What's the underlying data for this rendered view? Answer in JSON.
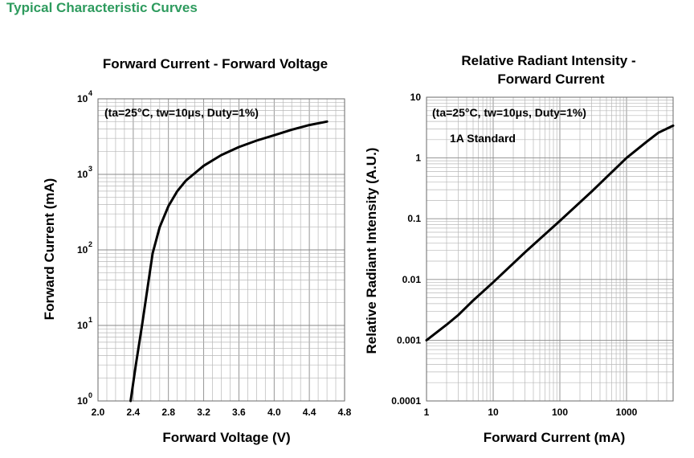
{
  "page": {
    "heading": "Typical Characteristic Curves",
    "heading_color": "#2e9b5e"
  },
  "chart_data": [
    {
      "type": "line",
      "title": "Forward Current - Forward Voltage",
      "xlabel": "Forward Voltage (V)",
      "ylabel": "Forward Current (mA)",
      "annotation": "(ta=25°C, tw=10μs, Duty=1%)",
      "x_scale": "linear",
      "y_scale": "log",
      "xlim": [
        2.0,
        4.8
      ],
      "ylim": [
        1,
        10000
      ],
      "x_ticks": [
        "2.0",
        "2.4",
        "2.8",
        "3.2",
        "3.6",
        "4.0",
        "4.4",
        "4.8"
      ],
      "y_ticks": [
        "10",
        "10",
        "10",
        "10",
        "10"
      ],
      "y_tick_exponents": [
        "0",
        "1",
        "2",
        "3",
        "4"
      ],
      "grid": true,
      "series": [
        {
          "x": [
            2.37,
            2.43,
            2.5,
            2.56,
            2.62,
            2.7,
            2.8,
            2.9,
            3.0,
            3.2,
            3.4,
            3.6,
            3.8,
            4.0,
            4.2,
            4.4,
            4.6
          ],
          "y": [
            1,
            3,
            10,
            30,
            90,
            200,
            380,
            600,
            830,
            1300,
            1800,
            2300,
            2800,
            3300,
            3900,
            4500,
            5000
          ]
        }
      ]
    },
    {
      "type": "line",
      "title": [
        "Relative Radiant Intensity -",
        "Forward Current"
      ],
      "xlabel": "Forward Current (mA)",
      "ylabel": "Relative Radiant Intensity (A.U.)",
      "annotation": "(ta=25°C, tw=10μs, Duty=1%)",
      "annotation2": "1A Standard",
      "x_scale": "log",
      "y_scale": "log",
      "xlim": [
        1,
        5000
      ],
      "ylim": [
        0.0001,
        10
      ],
      "x_ticks": [
        "1",
        "10",
        "100",
        "1000"
      ],
      "y_ticks": [
        "0.0001",
        "0.001",
        "0.01",
        "0.1",
        "1",
        "10"
      ],
      "grid": true,
      "series": [
        {
          "x": [
            1,
            2,
            3,
            5,
            10,
            30,
            100,
            300,
            1000,
            2000,
            3000,
            5000
          ],
          "y": [
            0.001,
            0.0018,
            0.0026,
            0.0045,
            0.009,
            0.028,
            0.092,
            0.28,
            1.0,
            1.85,
            2.6,
            3.4
          ]
        }
      ]
    }
  ]
}
